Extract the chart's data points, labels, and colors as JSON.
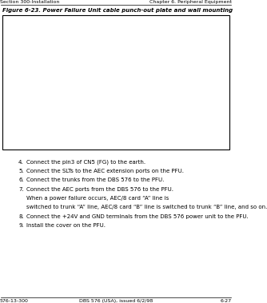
{
  "header_left": "Section 300-Installation",
  "header_right": "Chapter 6. Peripheral Equipment",
  "figure_title": "Figure 6-23. Power Failure Unit cable punch-out plate and wall mounting",
  "steps": [
    {
      "num": "4.",
      "text": "Connect the pin3 of CN5 (FG) to the earth."
    },
    {
      "num": "5.",
      "text": "Connect the SLTs to the AEC extension ports on the PFU."
    },
    {
      "num": "6.",
      "text": "Connect the trunks from the DBS 576 to the PFU."
    },
    {
      "num": "7.",
      "text": "Connect the AEC ports from the DBS 576 to the PFU."
    },
    {
      "num": "",
      "text": "When a power failure occurs, AEC/8 card “A” line is switched to trunk “A” line, AEC/8 card “B” line is switched to trunk “B” line, and so on."
    },
    {
      "num": "8.",
      "text": "Connect the +24V and GND terminals from the DBS 576 power unit to the PFU."
    },
    {
      "num": "9.",
      "text": "Install the cover on the PFU."
    }
  ],
  "footer_left": "576-13-300",
  "footer_center": "DBS 576 (USA), issued 6/2/98",
  "footer_right": "6-27",
  "bg_color": "#ffffff",
  "text_color": "#000000"
}
